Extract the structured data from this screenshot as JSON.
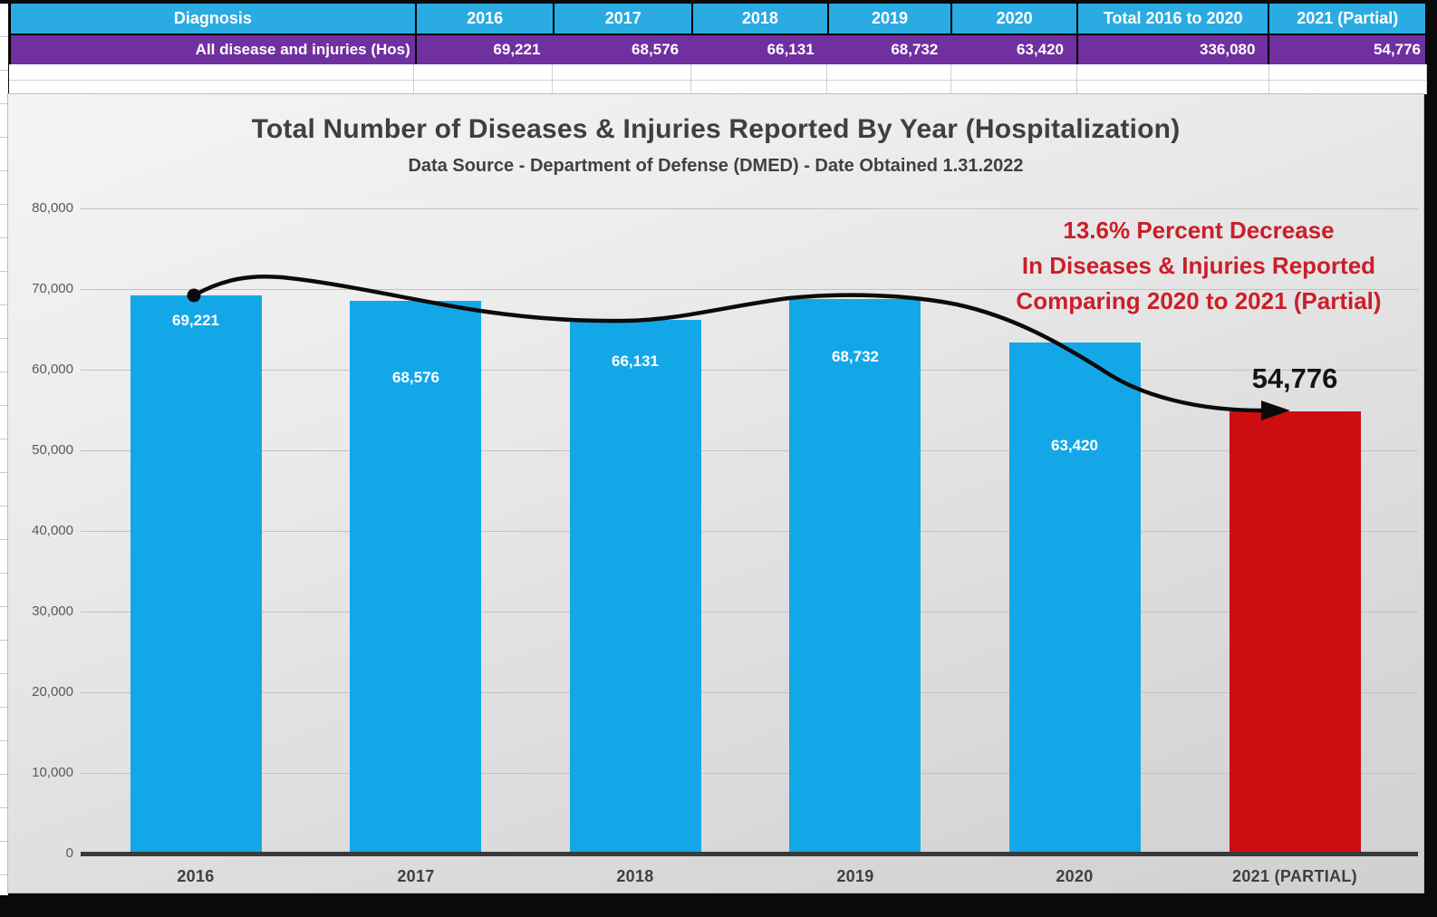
{
  "table": {
    "header": [
      "Diagnosis",
      "2016",
      "2017",
      "2018",
      "2019",
      "2020",
      "Total 2016 to 2020",
      "2021 (Partial)"
    ],
    "row_label": "All disease and injuries (Hos)",
    "row_values": [
      "69,221",
      "68,576",
      "66,131",
      "68,732",
      "63,420",
      "336,080",
      "54,776"
    ]
  },
  "chart_data": {
    "type": "bar",
    "title": "Total Number of Diseases & Injuries Reported By Year (Hospitalization)",
    "subtitle": "Data Source - Department of Defense (DMED) - Date Obtained 1.31.2022",
    "categories": [
      "2016",
      "2017",
      "2018",
      "2019",
      "2020",
      "2021 (PARTIAL)"
    ],
    "values": [
      69221,
      68576,
      66131,
      68732,
      63420,
      54776
    ],
    "value_labels": [
      "69,221",
      "68,576",
      "66,131",
      "68,732",
      "63,420",
      "54,776"
    ],
    "ylim": [
      0,
      80000
    ],
    "ytick_step": 10000,
    "yticks": [
      "80,000",
      "70,000",
      "60,000",
      "50,000",
      "40,000",
      "30,000",
      "20,000",
      "10,000",
      "0"
    ],
    "grid": true,
    "legend": "none",
    "trendline": true,
    "annotation_lines": [
      "13.6% Percent Decrease",
      "In Diseases & Injuries Reported",
      "Comparing 2020 to 2021 (Partial)"
    ]
  },
  "colors": {
    "header_bg": "#2aabe2",
    "row_bg": "#7030a0",
    "bar_blue": "#14a7e8",
    "bar_red": "#cd0e10",
    "annotation_red": "#cc1e28",
    "title_gray": "#3f3f3f",
    "trend_black": "#0b0b0b"
  }
}
